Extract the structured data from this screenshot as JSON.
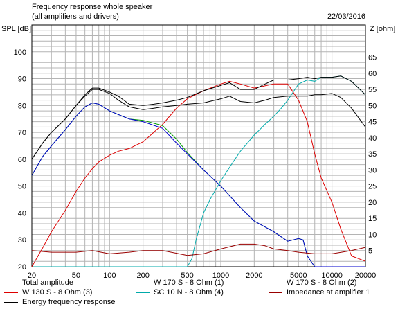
{
  "header": {
    "title": "Frequency response whole speaker",
    "subtitle": "(all amplifiers and drivers)",
    "date": "22/03/2016"
  },
  "chart_data": {
    "type": "line",
    "xscale": "log",
    "xlim": [
      20,
      20000
    ],
    "ylim": [
      20,
      110
    ],
    "y2lim": [
      0,
      75
    ],
    "ylabel": "SPL [dB]",
    "y2label": "Z [ohm]",
    "grid": true,
    "x_ticks": [
      20,
      50,
      100,
      200,
      500,
      1000,
      2000,
      5000,
      10000,
      20000
    ],
    "x_tick_labels": [
      "20",
      "50",
      "100",
      "200",
      "500",
      "1000",
      "2000",
      "5000",
      "10000",
      "20000"
    ],
    "y_ticks": [
      20,
      30,
      40,
      50,
      60,
      70,
      80,
      90,
      100
    ],
    "y_tick_labels": [
      "20",
      "30",
      "40",
      "50",
      "60",
      "70",
      "80",
      "90",
      "100"
    ],
    "y2_ticks": [
      5,
      10,
      15,
      20,
      25,
      30,
      35,
      40,
      45,
      50,
      55,
      60,
      65
    ],
    "y2_tick_labels": [
      "5",
      "10",
      "15",
      "20",
      "25",
      "30",
      "35",
      "40",
      "45",
      "50",
      "55",
      "60",
      "65"
    ],
    "series": [
      {
        "name": "Total amplitude",
        "color": "#000000",
        "axis": "left",
        "x": [
          20,
          25,
          30,
          40,
          50,
          60,
          70,
          80,
          100,
          120,
          150,
          200,
          250,
          300,
          400,
          500,
          700,
          1000,
          1200,
          1500,
          2000,
          2500,
          3000,
          4000,
          5000,
          6000,
          7000,
          8000,
          10000,
          12000,
          15000,
          20000
        ],
        "y": [
          60,
          66,
          70,
          75,
          80,
          84,
          86.5,
          86.5,
          85,
          83.5,
          80.5,
          80,
          80.5,
          81,
          82,
          83,
          85.5,
          87.5,
          88.5,
          86,
          86,
          88,
          89.5,
          89.5,
          90,
          90.5,
          90,
          90.5,
          90.5,
          91,
          89,
          84
        ]
      },
      {
        "name": "W 170 S - 8 Ohm (1)",
        "color": "#0000cc",
        "axis": "left",
        "x": [
          20,
          25,
          30,
          40,
          50,
          60,
          70,
          80,
          100,
          150,
          200,
          300,
          400,
          500,
          700,
          1000,
          1500,
          2000,
          3000,
          4000,
          5000,
          5500,
          6000,
          7000,
          10000,
          20000
        ],
        "y": [
          54,
          61,
          65,
          71,
          76,
          79.5,
          81,
          80.5,
          78,
          75,
          74,
          71.5,
          66,
          62,
          56,
          50,
          42,
          37,
          33,
          29.5,
          30.5,
          30,
          24,
          20,
          20,
          20
        ]
      },
      {
        "name": "W 170 S - 8 Ohm (2)",
        "color": "#009900",
        "axis": "left",
        "x": [
          20,
          25,
          30,
          40,
          50,
          60,
          70,
          80,
          100,
          150,
          200,
          300,
          400,
          500,
          700,
          1000,
          1500,
          2000,
          3000,
          4000,
          5000,
          5500,
          6000,
          7000,
          10000,
          20000
        ],
        "y": [
          54,
          61,
          65,
          71,
          76,
          79.5,
          81,
          80.5,
          78,
          75,
          74.5,
          72.5,
          67.5,
          62.5,
          56,
          50,
          42,
          37,
          33,
          29.5,
          30.5,
          30,
          24,
          20,
          20,
          20
        ]
      },
      {
        "name": "W 130 S - 8 Ohm (3)",
        "color": "#dd0000",
        "axis": "left",
        "x": [
          20,
          25,
          30,
          40,
          50,
          60,
          70,
          80,
          100,
          120,
          150,
          200,
          300,
          400,
          500,
          700,
          1000,
          1200,
          1500,
          2000,
          3000,
          4000,
          5000,
          6000,
          7000,
          8000,
          10000,
          12000,
          15000,
          20000
        ],
        "y": [
          20,
          27,
          33,
          41,
          48,
          53,
          56.5,
          59,
          61.5,
          63,
          64,
          66.5,
          73,
          79,
          82.5,
          85.5,
          88,
          89,
          88,
          86.5,
          88,
          88,
          82,
          74,
          62,
          53,
          44,
          34,
          24,
          22
        ]
      },
      {
        "name": "SC 10 N - 8 Ohm (4)",
        "color": "#00aaaa",
        "axis": "left",
        "x": [
          20,
          500,
          550,
          600,
          700,
          800,
          1000,
          1200,
          1500,
          2000,
          2500,
          3000,
          3500,
          4000,
          5000,
          6000,
          7000,
          8000,
          10000,
          12000,
          15000,
          20000
        ],
        "y": [
          20,
          20,
          23,
          30,
          40,
          45,
          52,
          57,
          63,
          69,
          73,
          76,
          79,
          82,
          88,
          89.5,
          89,
          90.5,
          90.5,
          91,
          89,
          84
        ]
      },
      {
        "name": "Impedance at amplifier 1",
        "color": "#990000",
        "axis": "right",
        "x": [
          20,
          30,
          50,
          70,
          100,
          150,
          200,
          300,
          500,
          700,
          1000,
          1500,
          2000,
          2500,
          3000,
          4000,
          5000,
          7000,
          10000,
          15000,
          20000
        ],
        "y": [
          5,
          4.5,
          4.5,
          5,
          4,
          4.5,
          5,
          5,
          3.5,
          4,
          5.5,
          7,
          7,
          6.5,
          5.5,
          5,
          4.5,
          4,
          4,
          5,
          6
        ]
      },
      {
        "name": "Energy frequency response",
        "color": "#000000",
        "axis": "left",
        "x": [
          20,
          25,
          30,
          40,
          50,
          60,
          70,
          80,
          100,
          120,
          150,
          200,
          250,
          300,
          400,
          500,
          700,
          1000,
          1200,
          1500,
          2000,
          2500,
          3000,
          4000,
          5000,
          6000,
          7000,
          8000,
          10000,
          12000,
          15000,
          20000
        ],
        "y": [
          60,
          66,
          70,
          75,
          80,
          83.5,
          86,
          86,
          84.5,
          82,
          79.5,
          78.5,
          79,
          79.5,
          80,
          80.5,
          81,
          82.5,
          83.5,
          81.5,
          81,
          82,
          83,
          83.5,
          83.5,
          83.5,
          84,
          84,
          84.5,
          83,
          79,
          72
        ]
      }
    ]
  }
}
